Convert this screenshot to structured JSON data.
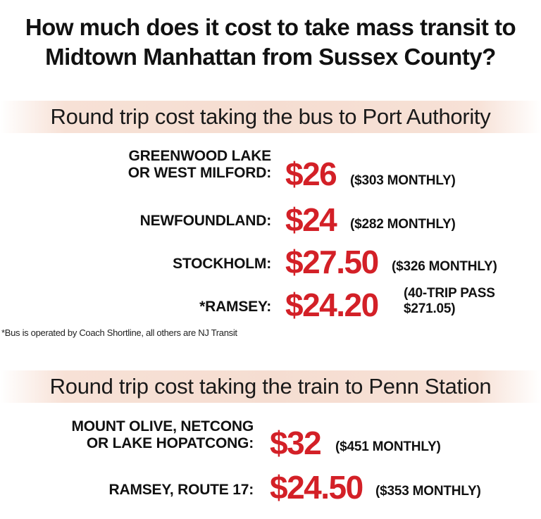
{
  "title": {
    "line1": "How much does it cost to take mass transit to",
    "line2": "Midtown Manhattan from Sussex County?"
  },
  "bus_section": {
    "heading": "Round trip cost taking the bus to Port Authority",
    "rows": [
      {
        "label_line1": "GREENWOOD LAKE",
        "label_line2": "OR WEST MILFORD:",
        "price": "$26",
        "monthly": "($303 MONTHLY)"
      },
      {
        "label_line1": "NEWFOUNDLAND:",
        "price": "$24",
        "monthly": "($282 MONTHLY)"
      },
      {
        "label_line1": "STOCKHOLM:",
        "price": "$27.50",
        "monthly": "($326 MONTHLY)"
      },
      {
        "label_line1": "*RAMSEY:",
        "price": "$24.20",
        "monthly_line1": "(40-TRIP PASS",
        "monthly_line2": "$271.05)"
      }
    ],
    "footnote": "*Bus is operated by Coach Shortline, all others are NJ Transit"
  },
  "train_section": {
    "heading": "Round trip cost taking the train to Penn Station",
    "rows": [
      {
        "label_line1": "MOUNT OLIVE, NETCONG",
        "label_line2": "OR LAKE HOPATCONG:",
        "price": "$32",
        "monthly": "($451 MONTHLY)"
      },
      {
        "label_line1": "RAMSEY, ROUTE 17:",
        "price": "$24.50",
        "monthly": "($353 MONTHLY)"
      }
    ]
  },
  "colors": {
    "price_red": "#d32027",
    "band_peach": "#f5ddd1",
    "text_dark": "#111111"
  }
}
